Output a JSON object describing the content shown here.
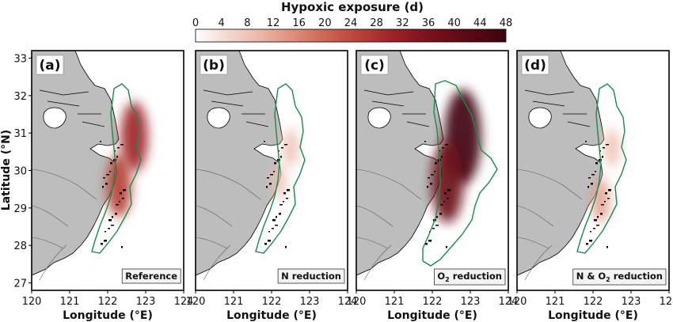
{
  "figure": {
    "colorbar": {
      "title": "Hypoxic exposure (d)",
      "ticks": [
        0,
        4,
        8,
        12,
        16,
        20,
        24,
        28,
        32,
        36,
        40,
        44,
        48
      ],
      "colors": [
        "#ffffff",
        "#f5dcd6",
        "#eebfb2",
        "#e49e8c",
        "#d77a66",
        "#c85a48",
        "#b43d33",
        "#9e2227",
        "#84131d",
        "#6a0c16",
        "#550811",
        "#3d050b"
      ]
    },
    "y_label": "Latitude (°N)",
    "x_label": "Longitude (°E)",
    "y_ticks": [
      "27",
      "28",
      "29",
      "30",
      "31",
      "32",
      "33"
    ],
    "x_ticks": [
      "120",
      "121",
      "122",
      "123",
      "124"
    ],
    "colors": {
      "land": "#bdbdbd",
      "coast": "#000000",
      "boundary": "#1a8a4a"
    },
    "panels": [
      {
        "tag": "(a)",
        "scenario": "Reference",
        "hotspots": [
          {
            "lon": 122.7,
            "lat": 30.9,
            "days": 30
          },
          {
            "lon": 122.3,
            "lat": 29.6,
            "days": 26
          }
        ]
      },
      {
        "tag": "(b)",
        "scenario": "N reduction",
        "hotspots": [
          {
            "lon": 122.5,
            "lat": 30.6,
            "days": 10
          },
          {
            "lon": 122.2,
            "lat": 29.7,
            "days": 8
          }
        ]
      },
      {
        "tag": "(c)",
        "scenario_prefix": "O",
        "scenario_sub": "2",
        "scenario_suffix": " reduction",
        "hotspots": [
          {
            "lon": 122.8,
            "lat": 30.9,
            "days": 46
          },
          {
            "lon": 122.4,
            "lat": 29.7,
            "days": 38
          }
        ]
      },
      {
        "tag": "(d)",
        "scenario_prefix": "N & O",
        "scenario_sub": "2",
        "scenario_suffix": " reduction",
        "hotspots": [
          {
            "lon": 122.5,
            "lat": 30.6,
            "days": 10
          },
          {
            "lon": 122.2,
            "lat": 29.2,
            "days": 14
          }
        ]
      }
    ]
  }
}
